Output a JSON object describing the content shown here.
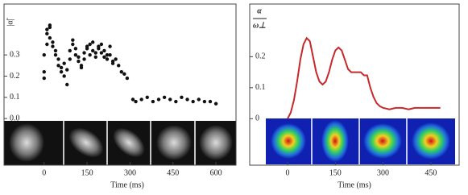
{
  "chart_data": [
    {
      "type": "scatter",
      "ylabel": "|α̃|",
      "xlabel": "Time  (ms)",
      "color": "#111111",
      "xlim": [
        -140,
        670
      ],
      "ylim": [
        -0.22,
        0.54
      ],
      "xticks": [
        0,
        150,
        300,
        450,
        600
      ],
      "yticks": [
        {
          "value": 0,
          "label": "0.0"
        },
        0.1,
        0.2,
        0.3
      ],
      "x": [
        0,
        0,
        0,
        10,
        10,
        10,
        20,
        20,
        20,
        30,
        30,
        40,
        40,
        50,
        50,
        60,
        60,
        70,
        70,
        80,
        80,
        90,
        90,
        100,
        100,
        110,
        110,
        120,
        120,
        130,
        130,
        140,
        140,
        150,
        150,
        160,
        160,
        170,
        170,
        180,
        180,
        190,
        190,
        200,
        200,
        210,
        210,
        220,
        220,
        230,
        230,
        240,
        240,
        250,
        260,
        270,
        280,
        290,
        310,
        320,
        340,
        360,
        380,
        400,
        420,
        440,
        460,
        480,
        500,
        520,
        540,
        560,
        580,
        600
      ],
      "values": [
        0.19,
        0.22,
        0.3,
        0.35,
        0.4,
        0.42,
        0.44,
        0.43,
        0.38,
        0.34,
        0.36,
        0.32,
        0.3,
        0.25,
        0.28,
        0.22,
        0.24,
        0.26,
        0.2,
        0.16,
        0.23,
        0.28,
        0.32,
        0.35,
        0.37,
        0.3,
        0.33,
        0.29,
        0.27,
        0.25,
        0.24,
        0.28,
        0.31,
        0.33,
        0.34,
        0.3,
        0.35,
        0.32,
        0.36,
        0.31,
        0.29,
        0.34,
        0.33,
        0.35,
        0.31,
        0.29,
        0.32,
        0.3,
        0.28,
        0.34,
        0.3,
        0.26,
        0.27,
        0.28,
        0.25,
        0.22,
        0.21,
        0.19,
        0.09,
        0.08,
        0.09,
        0.1,
        0.08,
        0.09,
        0.1,
        0.09,
        0.08,
        0.1,
        0.09,
        0.08,
        0.09,
        0.08,
        0.08,
        0.07
      ]
    },
    {
      "type": "line",
      "ylabel_numerator": "α",
      "ylabel_denominator": "ω⊥",
      "xlabel": "Time  (ms)",
      "color": "#c8282a",
      "xlim": [
        -119,
        539
      ],
      "ylim": [
        -0.15,
        0.37
      ],
      "xticks": [
        0,
        150,
        300,
        450
      ],
      "yticks": [
        0,
        0.1,
        0.2
      ],
      "x": [
        0,
        10,
        20,
        30,
        40,
        50,
        60,
        70,
        80,
        90,
        100,
        110,
        120,
        130,
        140,
        150,
        160,
        170,
        180,
        190,
        200,
        210,
        220,
        230,
        240,
        250,
        260,
        270,
        280,
        290,
        300,
        320,
        340,
        360,
        380,
        400,
        420,
        450,
        480
      ],
      "values": [
        0,
        0.02,
        0.06,
        0.12,
        0.19,
        0.24,
        0.26,
        0.25,
        0.2,
        0.15,
        0.12,
        0.11,
        0.12,
        0.15,
        0.19,
        0.22,
        0.23,
        0.22,
        0.19,
        0.16,
        0.15,
        0.15,
        0.15,
        0.15,
        0.14,
        0.14,
        0.1,
        0.07,
        0.05,
        0.04,
        0.035,
        0.03,
        0.035,
        0.035,
        0.03,
        0.035,
        0.035,
        0.035,
        0.035
      ]
    }
  ]
}
